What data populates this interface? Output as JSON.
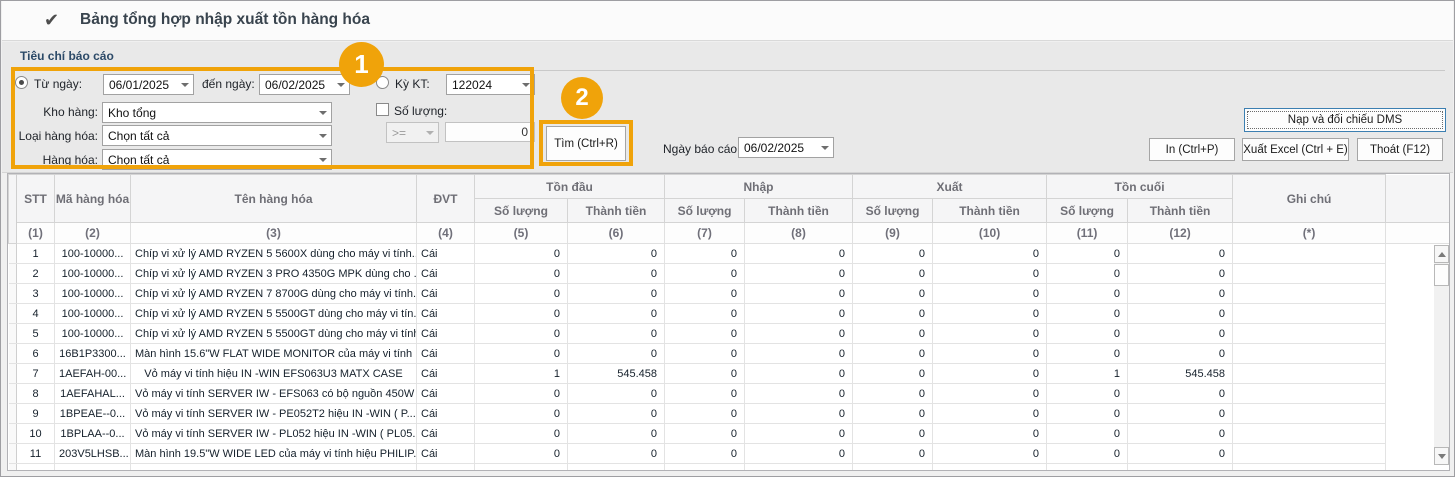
{
  "window": {
    "title": "Bảng tổng hợp nhập xuất tồn hàng hóa"
  },
  "colors": {
    "accent_orange": "#F0A30A",
    "dms_button_border": "#3C7FB1"
  },
  "callouts": {
    "one": "1",
    "two": "2"
  },
  "criteria": {
    "section_title": "Tiêu chí báo cáo",
    "tu_ngay": {
      "label": "Từ ngày:",
      "value": "06/01/2025",
      "selected": true
    },
    "den_ngay": {
      "label": "đến ngày:",
      "value": "06/02/2025"
    },
    "ky_kt": {
      "label": "Kỳ KT:",
      "value": "122024",
      "selected": false
    },
    "kho_hang": {
      "label": "Kho hàng:",
      "value": "Kho tổng"
    },
    "loai_hang_hoa": {
      "label": "Loại hàng hóa:",
      "value": "Chọn tất cả"
    },
    "hang_hoa": {
      "label": "Hàng hóa:",
      "value": "Chọn tất cả"
    },
    "so_luong": {
      "label": "Số lượng:",
      "checked": false,
      "operator": ">=",
      "value": "0"
    }
  },
  "toolbar": {
    "tim": "Tìm  (Ctrl+R)",
    "ngay_bao_cao": {
      "label": "Ngày báo cáo:",
      "value": "06/02/2025"
    },
    "nap_dms": "Nạp và đối chiếu DMS",
    "in": "In  (Ctrl+P)",
    "xuat_excel": "Xuất Excel  (Ctrl + E)",
    "thoat": "Thoát  (F12)"
  },
  "table": {
    "headers": {
      "stt": "STT",
      "ma": "Mã hàng hóa",
      "ten": "Tên hàng hóa",
      "dvt": "ĐVT",
      "ton_dau": "Tồn đầu",
      "nhap": "Nhập",
      "xuat": "Xuất",
      "ton_cuoi": "Tồn cuối",
      "so_luong": "Số lượng",
      "thanh_tien": "Thành tiền",
      "ghi_chu": "Ghi chú"
    },
    "col_numbers": [
      "(1)",
      "(2)",
      "(3)",
      "(4)",
      "(5)",
      "(6)",
      "(7)",
      "(8)",
      "(9)",
      "(10)",
      "(11)",
      "(12)",
      "(*)"
    ],
    "rows": [
      [
        "1",
        "100-10000...",
        "Chíp vi xử lý AMD RYZEN 5 5600X   dùng cho máy vi tính...",
        "Cái",
        "0",
        "0",
        "0",
        "0",
        "0",
        "0",
        "0",
        "0",
        ""
      ],
      [
        "2",
        "100-10000...",
        "Chíp vi xử lý AMD RYZEN 3 PRO 4350G  MPK  dùng cho ...",
        "Cái",
        "0",
        "0",
        "0",
        "0",
        "0",
        "0",
        "0",
        "0",
        ""
      ],
      [
        "3",
        "100-10000...",
        "Chíp vi xử lý AMD RYZEN 7 8700G   dùng cho máy vi tính...",
        "Cái",
        "0",
        "0",
        "0",
        "0",
        "0",
        "0",
        "0",
        "0",
        ""
      ],
      [
        "4",
        "100-10000...",
        "Chíp vi xử lý AMD RYZEN 5 5500GT   dùng cho máy vi tín...",
        "Cái",
        "0",
        "0",
        "0",
        "0",
        "0",
        "0",
        "0",
        "0",
        ""
      ],
      [
        "5",
        "100-10000...",
        "Chíp vi xử lý AMD RYZEN 5 5500GT   dùng cho máy vi tính",
        "Cái",
        "0",
        "0",
        "0",
        "0",
        "0",
        "0",
        "0",
        "0",
        ""
      ],
      [
        "6",
        "16B1P3300...",
        "Màn hình 15.6\"W FLAT WIDE  MONITOR của máy vi tính ...",
        "Cái",
        "0",
        "0",
        "0",
        "0",
        "0",
        "0",
        "0",
        "0",
        ""
      ],
      [
        "7",
        "1AEFAH-00...",
        "Vỏ máy vi tính  hiệu IN -WIN  EFS063U3 MATX CASE",
        "Cái",
        "1",
        "545.458",
        "0",
        "0",
        "0",
        "0",
        "1",
        "545.458",
        ""
      ],
      [
        "8",
        "1AEFAHAL...",
        "Vỏ máy vi tính SERVER IW - EFS063  có bộ nguồn 450W ...",
        "Cái",
        "0",
        "0",
        "0",
        "0",
        "0",
        "0",
        "0",
        "0",
        ""
      ],
      [
        "9",
        "1BPEAE--0...",
        "Vỏ máy vi tính SERVER IW - PE052T2  hiệu IN -WIN  ( P...",
        "Cái",
        "0",
        "0",
        "0",
        "0",
        "0",
        "0",
        "0",
        "0",
        ""
      ],
      [
        "10",
        "1BPLAA--0...",
        "Vỏ máy vi tính SERVER IW - PL052  hiệu IN -WIN  ( PL05...",
        "Cái",
        "0",
        "0",
        "0",
        "0",
        "0",
        "0",
        "0",
        "0",
        ""
      ],
      [
        "11",
        "203V5LHSB...",
        "Màn hình 19.5\"W  WIDE LED của máy vi tính hiệu PHILIP...",
        "Cái",
        "0",
        "0",
        "0",
        "0",
        "0",
        "0",
        "0",
        "0",
        ""
      ]
    ]
  }
}
